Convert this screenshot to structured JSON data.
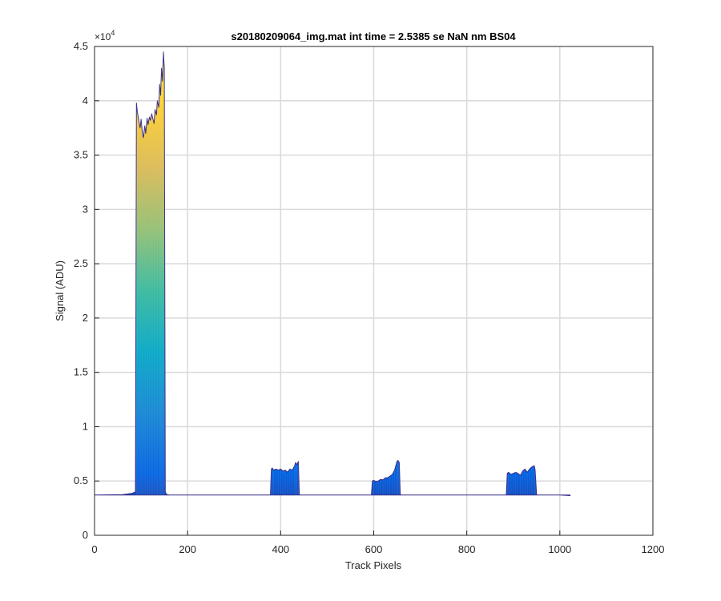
{
  "chart_data": {
    "type": "area",
    "title": "s20180209064_img.mat int time = 2.5385 se  NaN nm BS04",
    "xlabel": "Track Pixels",
    "ylabel": "Signal (ADU)",
    "xlim": [
      0,
      1200
    ],
    "ylim": [
      0,
      45000
    ],
    "x_ticks": [
      "0",
      "200",
      "400",
      "600",
      "800",
      "1000",
      "1200"
    ],
    "y_ticks": [
      "0",
      "0.5",
      "1",
      "1.5",
      "2",
      "2.5",
      "3",
      "3.5",
      "4",
      "4.5"
    ],
    "y_exponent": {
      "base": "×10",
      "power": "4"
    },
    "grid": true,
    "colormap": [
      "#352a87",
      "#0363e1",
      "#1485d4",
      "#06a7c6",
      "#38b99e",
      "#92bf73",
      "#d9ba56",
      "#fcce2e",
      "#f9fb0e"
    ],
    "baseline": 3700,
    "x": [
      0,
      60,
      80,
      88,
      90,
      92,
      95,
      98,
      100,
      103,
      105,
      108,
      110,
      113,
      115,
      118,
      120,
      123,
      125,
      128,
      130,
      133,
      135,
      138,
      140,
      142,
      144,
      146,
      148,
      150,
      152,
      155,
      160,
      200,
      300,
      378,
      380,
      382,
      385,
      390,
      395,
      400,
      405,
      410,
      415,
      420,
      425,
      430,
      432,
      435,
      438,
      440,
      442,
      445,
      500,
      595,
      597,
      600,
      605,
      610,
      615,
      620,
      625,
      630,
      635,
      640,
      645,
      650,
      652,
      655,
      657,
      660,
      700,
      800,
      885,
      887,
      890,
      895,
      900,
      905,
      910,
      915,
      920,
      925,
      930,
      935,
      940,
      945,
      947,
      950,
      1000,
      1022
    ],
    "y": [
      3700,
      3750,
      3850,
      4000,
      39800,
      39000,
      38200,
      37500,
      38300,
      37000,
      36600,
      37700,
      37000,
      38400,
      37800,
      38500,
      38200,
      38800,
      38400,
      37900,
      39200,
      38700,
      40000,
      39400,
      41500,
      40500,
      43000,
      41800,
      44500,
      43000,
      4000,
      3750,
      3720,
      3700,
      3700,
      3700,
      6100,
      6200,
      6000,
      6100,
      6000,
      6100,
      5900,
      6000,
      5800,
      6100,
      6000,
      6400,
      6700,
      6500,
      6800,
      3750,
      3700,
      3700,
      3700,
      3700,
      5000,
      5050,
      4950,
      5000,
      5150,
      5100,
      5300,
      5300,
      5450,
      5600,
      6000,
      6800,
      6900,
      6700,
      3750,
      3700,
      3700,
      3700,
      3700,
      5700,
      5800,
      5600,
      5700,
      5800,
      5700,
      5500,
      5900,
      6100,
      5800,
      6100,
      6300,
      6400,
      6000,
      3700,
      3700,
      3650
    ]
  }
}
